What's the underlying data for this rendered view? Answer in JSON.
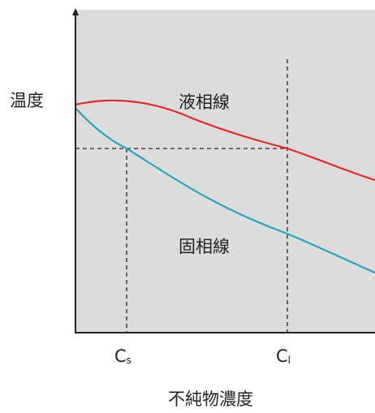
{
  "labels": {
    "y_axis": "温度",
    "x_axis": "不純物濃度",
    "liquidus": "液相線",
    "solidus": "固相線",
    "cs_main": "C",
    "cs_sub": "s",
    "cl_main": "C",
    "cl_sub": "l"
  },
  "colors": {
    "background": "#dcdcdc",
    "axis": "#222222",
    "liquidus": "#e8281e",
    "solidus": "#1fa8c4",
    "guide": "#222222"
  }
}
